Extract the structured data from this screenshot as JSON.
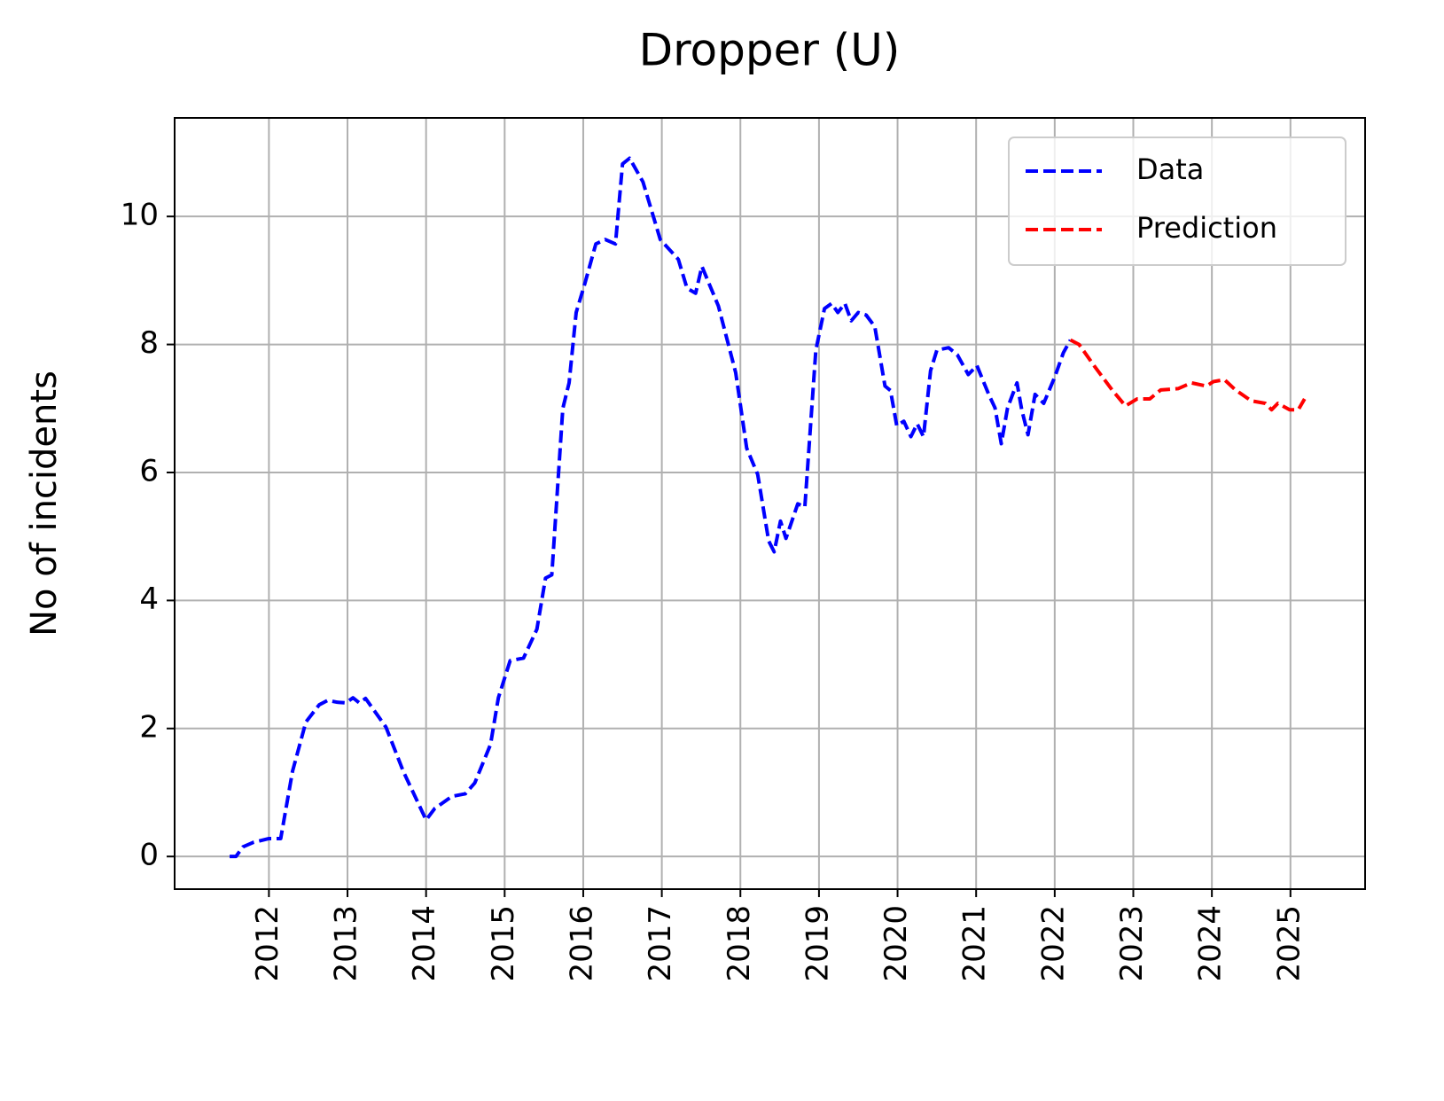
{
  "chart_data": {
    "type": "line",
    "title": "Dropper (U)",
    "y_label": "No of incidents",
    "xlim": [
      2010.8,
      2025.95
    ],
    "ylim": [
      -0.51,
      11.54
    ],
    "xticks": [
      2012,
      2013,
      2014,
      2015,
      2016,
      2017,
      2018,
      2019,
      2020,
      2021,
      2022,
      2023,
      2024,
      2025
    ],
    "yticks": [
      0,
      2,
      4,
      6,
      8,
      10
    ],
    "grid": true,
    "legend": "upper right",
    "line_style": "dashed",
    "series": [
      {
        "name": "Data",
        "color": "#0000ff",
        "x": [
          2011.5,
          2011.58,
          2011.67,
          2011.8,
          2012.0,
          2012.15,
          2012.3,
          2012.47,
          2012.64,
          2012.75,
          2012.87,
          2012.98,
          2013.07,
          2013.15,
          2013.23,
          2013.49,
          2013.71,
          2014.0,
          2014.11,
          2014.33,
          2014.5,
          2014.62,
          2014.82,
          2014.92,
          2015.07,
          2015.24,
          2015.41,
          2015.52,
          2015.6,
          2015.74,
          2015.82,
          2015.91,
          2016.02,
          2016.16,
          2016.28,
          2016.41,
          2016.5,
          2016.59,
          2016.76,
          2016.98,
          2017.21,
          2017.32,
          2017.43,
          2017.51,
          2017.72,
          2017.94,
          2018.08,
          2018.22,
          2018.36,
          2018.43,
          2018.51,
          2018.58,
          2018.73,
          2018.82,
          2018.96,
          2019.07,
          2019.16,
          2019.24,
          2019.33,
          2019.41,
          2019.5,
          2019.6,
          2019.71,
          2019.84,
          2019.91,
          2019.99,
          2020.08,
          2020.17,
          2020.25,
          2020.33,
          2020.42,
          2020.5,
          2020.65,
          2020.76,
          2020.9,
          2021.01,
          2021.16,
          2021.24,
          2021.32,
          2021.4,
          2021.52,
          2021.58,
          2021.66,
          2021.75,
          2021.86,
          2022.0,
          2022.11,
          2022.2
        ],
        "values": [
          0,
          0,
          0.15,
          0.22,
          0.28,
          0.28,
          1.33,
          2.1,
          2.37,
          2.44,
          2.41,
          2.4,
          2.48,
          2.4,
          2.47,
          2.02,
          1.33,
          0.57,
          0.75,
          0.94,
          0.98,
          1.15,
          1.75,
          2.48,
          3.06,
          3.1,
          3.55,
          4.35,
          4.4,
          7.0,
          7.4,
          8.5,
          8.95,
          9.57,
          9.64,
          9.57,
          10.82,
          10.91,
          10.54,
          9.64,
          9.33,
          8.88,
          8.8,
          9.22,
          8.6,
          7.56,
          6.38,
          5.97,
          4.93,
          4.76,
          5.24,
          4.97,
          5.51,
          5.46,
          7.91,
          8.56,
          8.64,
          8.5,
          8.64,
          8.37,
          8.5,
          8.46,
          8.28,
          7.35,
          7.28,
          6.73,
          6.8,
          6.56,
          6.76,
          6.56,
          7.59,
          7.91,
          7.95,
          7.84,
          7.53,
          7.67,
          7.22,
          7.01,
          6.45,
          7.01,
          7.4,
          6.98,
          6.59,
          7.22,
          7.08,
          7.49,
          7.87,
          8.07
        ]
      },
      {
        "name": "Prediction",
        "color": "#ff0000",
        "x": [
          2022.2,
          2022.31,
          2022.5,
          2022.73,
          2022.9,
          2023.05,
          2023.21,
          2023.35,
          2023.57,
          2023.74,
          2023.93,
          2024.02,
          2024.16,
          2024.3,
          2024.5,
          2024.68,
          2024.76,
          2024.84,
          2024.99,
          2025.1,
          2025.18
        ],
        "values": [
          8.07,
          8.0,
          7.67,
          7.29,
          7.04,
          7.15,
          7.15,
          7.29,
          7.31,
          7.4,
          7.35,
          7.42,
          7.45,
          7.29,
          7.12,
          7.08,
          6.98,
          7.08,
          6.98,
          6.98,
          7.15
        ]
      }
    ]
  }
}
